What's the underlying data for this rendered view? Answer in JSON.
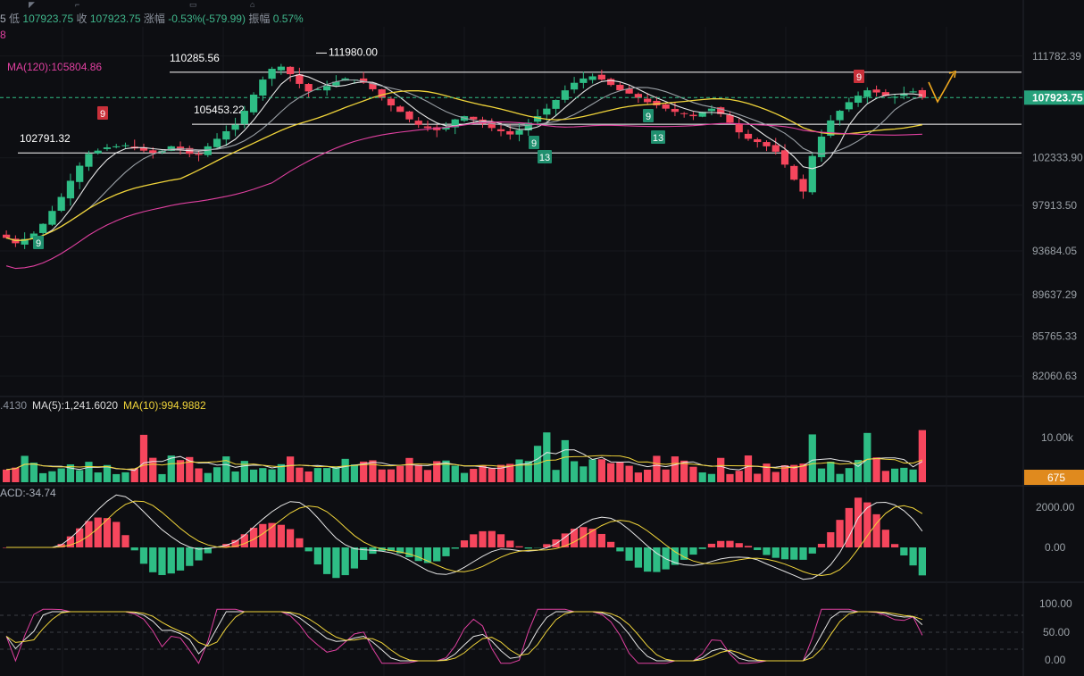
{
  "header": {
    "prefix": "5",
    "low_label": "低",
    "low": "107923.75",
    "close_label": "收",
    "close": "107923.75",
    "change_label": "涨幅",
    "change": "-0.53%(-579.99)",
    "amp_label": "振幅",
    "amp": "0.57%",
    "ma_prefix": "8"
  },
  "ma120_label": "MA(120):105804.86",
  "price_axis": [
    "111782.39",
    "102333.90",
    "97913.50",
    "93684.05",
    "89637.29",
    "85765.33",
    "82060.63"
  ],
  "current_price": "107923.75",
  "annotations": {
    "peak": "111980.00",
    "level_top": "110285.56",
    "level_mid": "105453.22",
    "level_low": "102791.32"
  },
  "td_labels": [
    {
      "text": "9",
      "kind": "sell"
    },
    {
      "text": "9",
      "kind": "buy"
    },
    {
      "text": "9",
      "kind": "buy"
    },
    {
      "text": "13",
      "kind": "buy"
    },
    {
      "text": "9",
      "kind": "buy"
    },
    {
      "text": "13",
      "kind": "buy"
    },
    {
      "text": "9",
      "kind": "sell"
    }
  ],
  "volume_panel": {
    "left_value": ".4130",
    "ma5": "MA(5):1,241.6020",
    "ma10": "MA(10):994.9882",
    "axis": "10.00k",
    "current": "675"
  },
  "macd_panel": {
    "label": "ACD:-34.74",
    "axis": [
      "2000.00",
      "0.00"
    ]
  },
  "kdj_panel": {
    "axis": [
      "100.00",
      "50.00",
      "0.00"
    ]
  },
  "colors": {
    "up": "#2ebd85",
    "down": "#f6465d",
    "ma_white": "#e6e6e6",
    "ma_gray": "#9aa0a6",
    "ma_yellow": "#f0d43a",
    "ma_pink": "#e040a0",
    "orange_badge": "#e08a1e",
    "price_badge": "#26a17b"
  },
  "chart_data": {
    "type": "candlestick",
    "price_levels": [
      110285.56,
      105453.22,
      102791.32
    ],
    "peak": 111980.0,
    "last_price": 107923.75,
    "ylim": [
      80500,
      114500
    ],
    "closes": [
      94900,
      94400,
      94800,
      95300,
      96200,
      97400,
      98700,
      100200,
      101600,
      102700,
      103000,
      103300,
      103400,
      103500,
      103200,
      103000,
      102800,
      103000,
      103400,
      103100,
      102700,
      102600,
      103400,
      104100,
      104800,
      105400,
      106700,
      108200,
      109600,
      110600,
      110800,
      110100,
      109200,
      108500,
      108700,
      109000,
      109400,
      109700,
      109600,
      109300,
      108700,
      107900,
      107200,
      106600,
      105900,
      105400,
      105100,
      104900,
      105200,
      105900,
      106200,
      105900,
      105500,
      105100,
      104800,
      104500,
      104900,
      105600,
      106200,
      106900,
      107700,
      108600,
      109300,
      109700,
      109900,
      109600,
      109100,
      108600,
      108300,
      107900,
      107500,
      107200,
      106900,
      106600,
      106400,
      106200,
      106600,
      106900,
      106400,
      105600,
      104700,
      104100,
      103800,
      103400,
      102900,
      101700,
      100300,
      99200,
      102500,
      104300,
      105800,
      106700,
      107500,
      108100,
      108600,
      108400,
      108100,
      108000,
      108300,
      108500,
      107900
    ]
  }
}
